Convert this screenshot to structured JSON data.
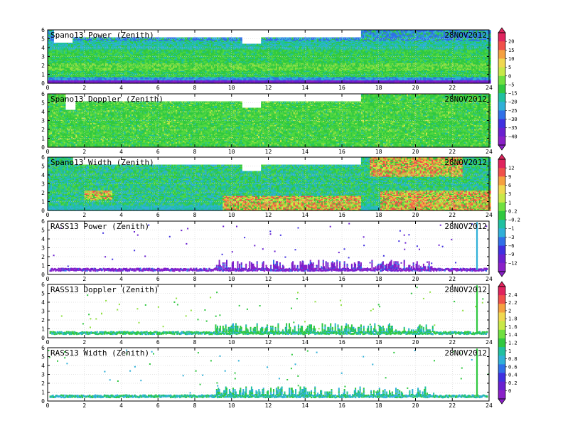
{
  "chart_data": [
    {
      "type": "heatmap",
      "title": "Spano13 Power (Zenith)",
      "date": "28NOV2012",
      "xlim": [
        0,
        24
      ],
      "ylim": [
        0,
        6
      ],
      "x_ticks": [
        0,
        2,
        4,
        6,
        8,
        10,
        12,
        14,
        16,
        18,
        20,
        22,
        24
      ],
      "y_ticks": [
        0,
        1,
        2,
        3,
        4,
        5,
        6
      ],
      "grid": true,
      "colorbar": "A",
      "style": "spano-power",
      "gaps": [
        {
          "x": [
            0.3,
            1.3
          ],
          "y_min": 4.5
        },
        {
          "x": [
            1.3,
            17.0
          ],
          "y_min": 5.1
        },
        {
          "x": [
            10.5,
            11.6
          ],
          "y_min": 4.4
        }
      ]
    },
    {
      "type": "heatmap",
      "title": "Spano13 Doppler (Zenith)",
      "date": "28NOV2012",
      "xlim": [
        0,
        24
      ],
      "ylim": [
        0,
        6
      ],
      "x_ticks": [
        0,
        2,
        4,
        6,
        8,
        10,
        12,
        14,
        16,
        18,
        20,
        22,
        24
      ],
      "y_ticks": [
        0,
        1,
        2,
        3,
        4,
        5,
        6
      ],
      "grid": true,
      "colorbar": "A",
      "style": "spano-doppler",
      "gaps": [
        {
          "x": [
            0.9,
            1.5
          ],
          "y_min": 4.2
        },
        {
          "x": [
            1.5,
            17.0
          ],
          "y_min": 5.1
        },
        {
          "x": [
            10.5,
            11.6
          ],
          "y_min": 4.4
        }
      ]
    },
    {
      "type": "heatmap",
      "title": "Spano13 Width (Zenith)",
      "date": "28NOV2012",
      "xlim": [
        0,
        24
      ],
      "ylim": [
        0,
        6
      ],
      "x_ticks": [
        0,
        2,
        4,
        6,
        8,
        10,
        12,
        14,
        16,
        18,
        20,
        22,
        24
      ],
      "y_ticks": [
        0,
        1,
        2,
        3,
        4,
        5,
        6
      ],
      "grid": true,
      "colorbar": "B",
      "style": "spano-width",
      "gaps": [
        {
          "x": [
            1.3,
            17.0
          ],
          "y_min": 5.1
        },
        {
          "x": [
            10.5,
            11.6
          ],
          "y_min": 4.4
        }
      ]
    },
    {
      "type": "scatter",
      "title": "RASS13 Power (Zenith)",
      "date": "28NOV2012",
      "xlim": [
        0,
        24
      ],
      "ylim": [
        0,
        6
      ],
      "x_ticks": [
        0,
        2,
        4,
        6,
        8,
        10,
        12,
        14,
        16,
        18,
        20,
        22,
        24
      ],
      "y_ticks": [
        0,
        1,
        2,
        3,
        4,
        5,
        6
      ],
      "grid": true,
      "colorbar": "B",
      "style": "rass-power",
      "vertical_line_x": 23.3
    },
    {
      "type": "scatter",
      "title": "RASS13 Doppler (Zenith)",
      "date": "28NOV2012",
      "xlim": [
        0,
        24
      ],
      "ylim": [
        0,
        6
      ],
      "x_ticks": [
        0,
        2,
        4,
        6,
        8,
        10,
        12,
        14,
        16,
        18,
        20,
        22,
        24
      ],
      "y_ticks": [
        0,
        1,
        2,
        3,
        4,
        5,
        6
      ],
      "grid": true,
      "colorbar": "C",
      "style": "rass-doppler",
      "vertical_line_x": 23.3
    },
    {
      "type": "scatter",
      "title": "RASS13 Width (Zenith)",
      "date": "28NOV2012",
      "xlim": [
        0,
        24
      ],
      "ylim": [
        0,
        6
      ],
      "x_ticks": [
        0,
        2,
        4,
        6,
        8,
        10,
        12,
        14,
        16,
        18,
        20,
        22,
        24
      ],
      "y_ticks": [
        0,
        1,
        2,
        3,
        4,
        5,
        6
      ],
      "grid": true,
      "colorbar": "C",
      "style": "rass-width",
      "vertical_line_x": 23.3
    }
  ],
  "colorbars": {
    "A": {
      "labels": [
        "20",
        "15",
        "10",
        "5",
        "0",
        "−5",
        "−15",
        "−20",
        "−25",
        "−30",
        "−35",
        "−40"
      ],
      "colors": [
        "#e0245e",
        "#f0504a",
        "#f5a040",
        "#f0d850",
        "#c8e848",
        "#70e040",
        "#30c840",
        "#20c0a0",
        "#30b0d8",
        "#3070e8",
        "#4030e0",
        "#6a20d0",
        "#8a20c8"
      ]
    },
    "B": {
      "labels": [
        "12",
        "9",
        "6",
        "3",
        "1",
        "0.2",
        "−0.2",
        "−1",
        "−3",
        "−6",
        "−9",
        "−12"
      ],
      "colors": [
        "#e0245e",
        "#f0504a",
        "#f5a040",
        "#f0d850",
        "#c8e848",
        "#70e040",
        "#30c840",
        "#20c0a0",
        "#30b0d8",
        "#3070e8",
        "#4030e0",
        "#6a20d0",
        "#8a20c8"
      ]
    },
    "C": {
      "labels": [
        "2.4",
        "2.2",
        "2",
        "1.8",
        "1.6",
        "1.4",
        "1.2",
        "1",
        "0.8",
        "0.6",
        "0.4",
        "0.2",
        "0"
      ],
      "colors": [
        "#e0245e",
        "#f0504a",
        "#f5a040",
        "#f0d850",
        "#c8e848",
        "#70e040",
        "#30c840",
        "#20c0a0",
        "#30b0d8",
        "#3070e8",
        "#4030e0",
        "#6a20d0",
        "#8a20c8"
      ]
    }
  }
}
